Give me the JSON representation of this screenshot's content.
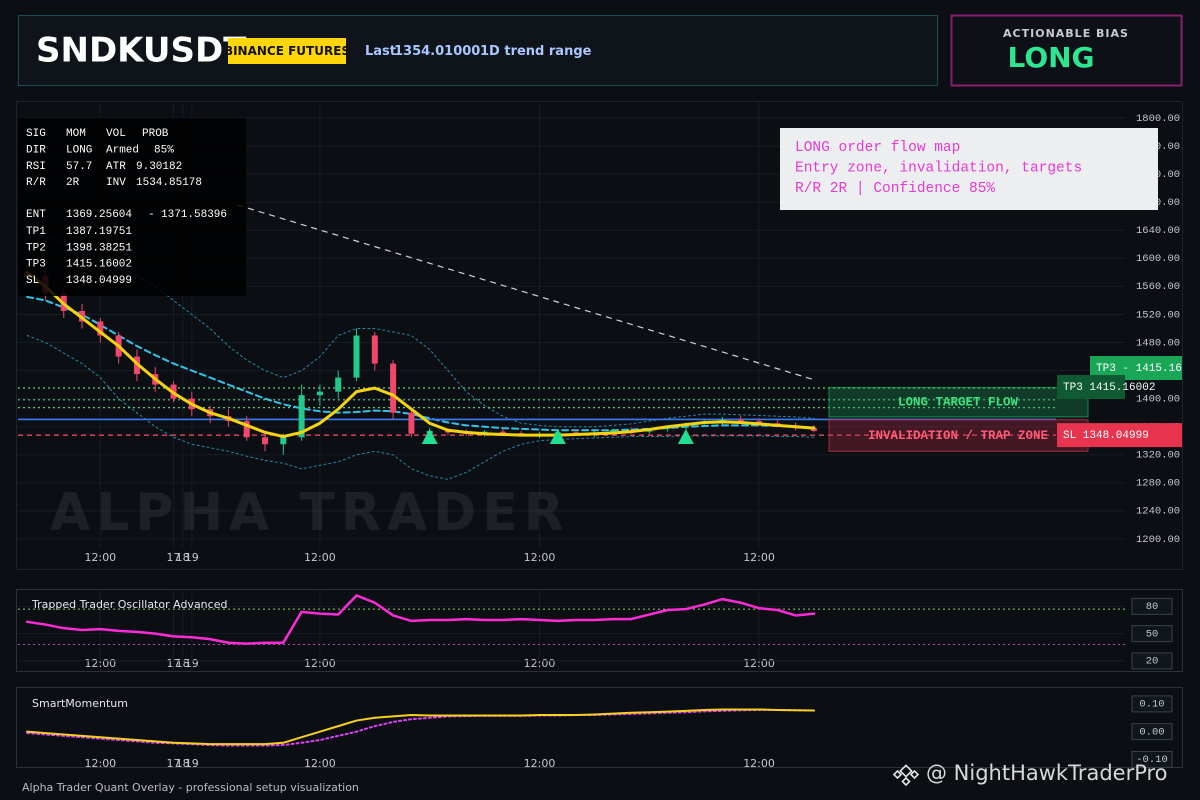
{
  "header": {
    "symbol": "SNDKUSDT",
    "badge": "BINANCE FUTURES",
    "last_label": "Last",
    "last_price": "1354.01000",
    "range": "1D trend range"
  },
  "bias": {
    "title": "ACTIONABLE BIAS",
    "value": "LONG"
  },
  "info_panel": {
    "columns": [
      "SIG",
      "MOM",
      "VOL",
      "PROB"
    ],
    "rows": [
      [
        "DIR",
        "LONG",
        "Armed",
        "85%"
      ],
      [
        "RSI",
        "57.7",
        "ATR",
        "9.30182"
      ],
      [
        "R/R",
        "2R",
        "INV",
        "1534.85178"
      ]
    ],
    "entry": {
      "label": "ENT",
      "low": 1369.25604,
      "separator": "-",
      "high": 1371.58396,
      "color": "#3b7bf0"
    },
    "levels": [
      {
        "label": "TP1",
        "value": 1387.19751,
        "color": "#5fd07a"
      },
      {
        "label": "TP2",
        "value": 1398.38251,
        "color": "#5fd07a"
      },
      {
        "label": "TP3",
        "value": 1415.16002,
        "color": "#5fd07a"
      },
      {
        "label": "SL",
        "value": 1348.04999,
        "color": "#ff4d6d"
      }
    ]
  },
  "note": {
    "lines": [
      "LONG order flow map",
      "Entry zone, invalidation, targets",
      "R/R 2R | Confidence 85%"
    ]
  },
  "footer": "Alpha Trader Quant Overlay - professional setup visualization",
  "watermark": "@ NightHawkTraderPro",
  "chart_data": [
    {
      "type": "candlestick",
      "watermark": "ALPHA TRADER",
      "x": [
        1,
        3,
        5,
        7,
        9,
        11,
        13,
        15,
        17,
        19,
        21,
        23,
        25,
        27,
        29,
        31,
        33,
        35,
        37,
        39,
        41,
        43,
        45,
        47,
        49,
        51,
        53,
        55,
        57,
        59,
        61,
        63,
        65,
        67,
        69,
        71,
        73,
        75,
        77,
        79,
        81,
        83,
        85,
        87
      ],
      "open": [
        1580,
        1575,
        1550,
        1525,
        1510,
        1490,
        1460,
        1435,
        1420,
        1400,
        1385,
        1375,
        1368,
        1345,
        1335,
        1345,
        1405,
        1410,
        1430,
        1490,
        1450,
        1380,
        1350,
        1354,
        1352,
        1350,
        1353,
        1351,
        1348,
        1350,
        1352,
        1349,
        1351,
        1355,
        1353,
        1357,
        1360,
        1364,
        1367,
        1370,
        1368,
        1365,
        1362,
        1358
      ],
      "high": [
        1590,
        1585,
        1560,
        1535,
        1515,
        1495,
        1470,
        1445,
        1425,
        1410,
        1390,
        1385,
        1375,
        1352,
        1350,
        1420,
        1420,
        1440,
        1500,
        1495,
        1455,
        1385,
        1358,
        1358,
        1356,
        1355,
        1357,
        1354,
        1353,
        1355,
        1356,
        1354,
        1357,
        1359,
        1358,
        1362,
        1366,
        1370,
        1374,
        1376,
        1372,
        1369,
        1366,
        1362
      ],
      "low": [
        1565,
        1540,
        1515,
        1500,
        1480,
        1450,
        1425,
        1410,
        1395,
        1375,
        1365,
        1360,
        1340,
        1325,
        1320,
        1340,
        1390,
        1400,
        1425,
        1440,
        1370,
        1345,
        1342,
        1348,
        1347,
        1346,
        1349,
        1346,
        1344,
        1347,
        1348,
        1345,
        1348,
        1350,
        1350,
        1353,
        1356,
        1360,
        1362,
        1365,
        1362,
        1359,
        1355,
        1352
      ],
      "close": [
        1575,
        1550,
        1525,
        1510,
        1490,
        1460,
        1435,
        1420,
        1400,
        1385,
        1375,
        1368,
        1345,
        1335,
        1345,
        1405,
        1410,
        1430,
        1490,
        1450,
        1380,
        1350,
        1354,
        1352,
        1350,
        1353,
        1351,
        1348,
        1350,
        1352,
        1349,
        1351,
        1355,
        1353,
        1357,
        1360,
        1364,
        1367,
        1370,
        1368,
        1365,
        1362,
        1358,
        1354
      ],
      "up_color": "#22c98a",
      "down_color": "#f0476b",
      "lines": [
        {
          "color": "#2a86a8",
          "style": "dotted",
          "width": 1,
          "values": [
            1640,
            1630,
            1620,
            1610,
            1600,
            1590,
            1575,
            1560,
            1540,
            1520,
            1500,
            1475,
            1455,
            1440,
            1430,
            1440,
            1460,
            1490,
            1500,
            1500,
            1495,
            1490,
            1470,
            1440,
            1410,
            1390,
            1375,
            1365,
            1362,
            1360,
            1360,
            1360,
            1362,
            1364,
            1368,
            1372,
            1375,
            1378,
            1378,
            1377,
            1376,
            1375,
            1374,
            1372
          ]
        },
        {
          "color": "#2a86a8",
          "style": "dotted",
          "width": 1,
          "values": [
            1490,
            1480,
            1465,
            1450,
            1430,
            1400,
            1380,
            1360,
            1345,
            1335,
            1330,
            1325,
            1318,
            1312,
            1308,
            1300,
            1305,
            1310,
            1320,
            1325,
            1320,
            1300,
            1290,
            1285,
            1295,
            1310,
            1325,
            1335,
            1340,
            1342,
            1343,
            1344,
            1345,
            1346,
            1346,
            1346,
            1347,
            1347,
            1347,
            1347,
            1347,
            1346,
            1346,
            1345
          ]
        },
        {
          "color": "#2fc4ea",
          "style": "dashed",
          "width": 2,
          "values": [
            1545,
            1540,
            1530,
            1520,
            1505,
            1490,
            1475,
            1462,
            1450,
            1440,
            1430,
            1420,
            1410,
            1400,
            1392,
            1386,
            1382,
            1380,
            1381,
            1383,
            1382,
            1378,
            1372,
            1366,
            1362,
            1360,
            1358,
            1357,
            1356,
            1355,
            1355,
            1355,
            1355,
            1356,
            1357,
            1358,
            1360,
            1361,
            1362,
            1362,
            1362,
            1361,
            1360,
            1359
          ]
        },
        {
          "color": "#f5d40f",
          "style": "solid",
          "width": 3,
          "values": [
            1580,
            1560,
            1535,
            1515,
            1495,
            1475,
            1450,
            1428,
            1408,
            1392,
            1380,
            1372,
            1362,
            1352,
            1346,
            1352,
            1365,
            1385,
            1410,
            1415,
            1405,
            1385,
            1365,
            1355,
            1352,
            1350,
            1349,
            1348,
            1348,
            1348,
            1349,
            1350,
            1351,
            1353,
            1356,
            1360,
            1363,
            1366,
            1367,
            1366,
            1364,
            1362,
            1360,
            1358
          ]
        }
      ],
      "trendline": {
        "x": [
          24,
          87
        ],
        "values": [
          1676,
          1427
        ],
        "color": "#d0d4da"
      },
      "signals": {
        "x": [
          45,
          59,
          73
        ],
        "values": [
          1344,
          1344,
          1344
        ],
        "color": "#1fe08f"
      },
      "zones": [
        {
          "label": "LONG TARGET FLOW",
          "range": [
            1374,
            1416
          ],
          "color": "#1fa35c",
          "text_color": "#3ee27f"
        },
        {
          "label": "INVALIDATION / TRAP ZONE",
          "range": [
            1325,
            1370
          ],
          "color": "#c0304a",
          "text_color": "#ff5a76"
        }
      ],
      "tags": [
        {
          "text": "TP3 - 1415.16",
          "value": 1415.16,
          "color": "#19a656"
        },
        {
          "text": "TP3 1415.16002",
          "value": 1415.16002,
          "color": "#0f5a34"
        },
        {
          "text": "SL 1348.04999",
          "value": 1348.04999,
          "color": "#e8344f"
        }
      ],
      "xlim": [
        0,
        121
      ],
      "xticks": [
        {
          "value": 9,
          "label": "12:00"
        },
        17,
        {
          "value": 33,
          "label": "12:00"
        },
        18,
        {
          "value": 57,
          "label": "12:00"
        },
        19,
        {
          "value": 81,
          "label": "12:00"
        }
      ],
      "ylim": [
        1190,
        1820
      ],
      "yticks": [
        {
          "value": 1200,
          "label": "1200.00"
        },
        {
          "value": 1240,
          "label": "1240.00"
        },
        {
          "value": 1280,
          "label": "1280.00"
        },
        {
          "value": 1320,
          "label": "1320.00"
        },
        {
          "value": 1360,
          "label": "1360.00"
        },
        {
          "value": 1400,
          "label": "1400.00"
        },
        {
          "value": 1440,
          "label": "1440.00"
        },
        {
          "value": 1480,
          "label": "1480.00"
        },
        {
          "value": 1520,
          "label": "1520.00"
        },
        {
          "value": 1560,
          "label": "1560.00"
        },
        {
          "value": 1600,
          "label": "1600.00"
        },
        {
          "value": 1640,
          "label": "1640.00"
        },
        {
          "value": 1680,
          "label": "1680.00"
        },
        {
          "value": 1720,
          "label": "1720.00"
        },
        {
          "value": 1760,
          "label": "1760.00"
        },
        {
          "value": 1800,
          "label": "1800.00"
        }
      ],
      "grid": true
    },
    {
      "type": "line",
      "title": "Trapped Trader Oscillator Advanced",
      "x": [
        1,
        3,
        5,
        7,
        9,
        11,
        13,
        15,
        17,
        19,
        21,
        23,
        25,
        27,
        29,
        31,
        33,
        35,
        37,
        39,
        41,
        43,
        45,
        47,
        49,
        51,
        53,
        55,
        57,
        59,
        61,
        63,
        65,
        67,
        69,
        71,
        73,
        75,
        77,
        79,
        81,
        83,
        85,
        87
      ],
      "series": [
        {
          "color": "#ff2bd6",
          "style": "solid",
          "width": 2.5,
          "values": [
            63,
            60,
            56,
            54,
            55,
            53,
            52,
            50,
            47,
            46,
            44,
            40,
            39,
            40,
            40,
            74,
            72,
            71,
            92,
            84,
            70,
            64,
            65,
            65,
            66,
            65,
            65,
            66,
            65,
            64,
            65,
            65,
            66,
            66,
            71,
            76,
            77,
            82,
            88,
            84,
            78,
            76,
            70,
            72
          ]
        }
      ],
      "levels": [
        {
          "value": 77,
          "color": "#8bd66b"
        },
        {
          "value": 38,
          "color": "#c040c0"
        }
      ],
      "xlim": [
        0,
        121
      ],
      "xticks": [
        {
          "value": 9,
          "label": "12:00"
        },
        17,
        {
          "value": 33,
          "label": "12:00"
        },
        18,
        {
          "value": 57,
          "label": "12:00"
        },
        19,
        {
          "value": 81,
          "label": "12:00"
        }
      ],
      "ylim": [
        10,
        98
      ],
      "yticks": [
        20,
        50,
        80
      ],
      "grid": true
    },
    {
      "type": "line",
      "title": "SmartMomentum",
      "x": [
        1,
        3,
        5,
        7,
        9,
        11,
        13,
        15,
        17,
        19,
        21,
        23,
        25,
        27,
        29,
        31,
        33,
        35,
        37,
        39,
        41,
        43,
        45,
        47,
        49,
        51,
        53,
        55,
        57,
        59,
        61,
        63,
        65,
        67,
        69,
        71,
        73,
        75,
        77,
        79,
        81,
        83,
        85,
        87
      ],
      "series": [
        {
          "color": "#e040fb",
          "style": "dotted",
          "width": 2,
          "values": [
            -0.005,
            -0.01,
            -0.015,
            -0.02,
            -0.025,
            -0.03,
            -0.035,
            -0.04,
            -0.042,
            -0.045,
            -0.048,
            -0.05,
            -0.05,
            -0.05,
            -0.048,
            -0.04,
            -0.03,
            -0.015,
            0.0,
            0.02,
            0.035,
            0.045,
            0.05,
            0.055,
            0.056,
            0.057,
            0.057,
            0.057,
            0.058,
            0.058,
            0.06,
            0.06,
            0.062,
            0.064,
            0.066,
            0.068,
            0.07,
            0.073,
            0.075,
            0.077,
            0.078,
            0.078,
            0.077,
            0.076
          ]
        },
        {
          "color": "#f7d020",
          "style": "solid",
          "width": 2,
          "values": [
            0.0,
            -0.005,
            -0.01,
            -0.015,
            -0.02,
            -0.025,
            -0.03,
            -0.035,
            -0.04,
            -0.042,
            -0.045,
            -0.045,
            -0.045,
            -0.045,
            -0.04,
            -0.02,
            0.0,
            0.02,
            0.04,
            0.05,
            0.055,
            0.06,
            0.058,
            0.058,
            0.058,
            0.058,
            0.058,
            0.058,
            0.06,
            0.06,
            0.06,
            0.062,
            0.065,
            0.068,
            0.07,
            0.072,
            0.075,
            0.078,
            0.08,
            0.08,
            0.08,
            0.078,
            0.077,
            0.076
          ]
        }
      ],
      "xlim": [
        0,
        121
      ],
      "xticks": [
        {
          "value": 9,
          "label": "12:00"
        },
        17,
        {
          "value": 33,
          "label": "12:00"
        },
        18,
        {
          "value": 57,
          "label": "12:00"
        },
        19,
        {
          "value": 81,
          "label": "12:00"
        }
      ],
      "ylim": [
        -0.12,
        0.15
      ],
      "yticks": [
        {
          "value": -0.1,
          "label": "-0.10"
        },
        {
          "value": 0,
          "label": "0.00"
        },
        {
          "value": 0.1,
          "label": "0.10"
        }
      ],
      "grid": false
    }
  ]
}
